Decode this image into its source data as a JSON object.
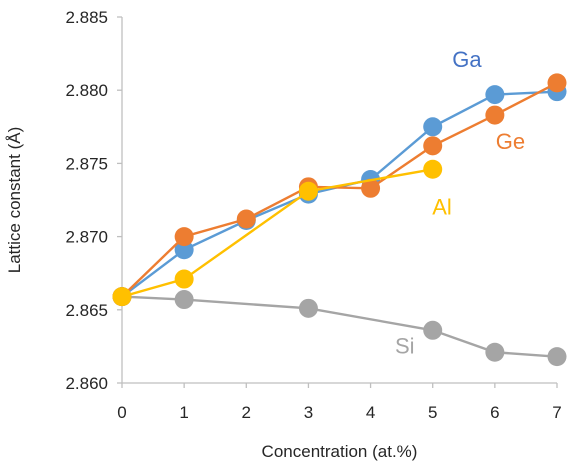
{
  "chart_data": {
    "type": "line",
    "title": "",
    "xlabel": "Concentration (at.%)",
    "ylabel": "Lattice constant (Å)",
    "xlim": [
      0,
      7
    ],
    "ylim": [
      2.86,
      2.885
    ],
    "x_ticks": [
      "0",
      "1",
      "2",
      "3",
      "4",
      "5",
      "6",
      "7"
    ],
    "y_ticks": [
      "2.860",
      "2.865",
      "2.870",
      "2.875",
      "2.880",
      "2.885"
    ],
    "grid": false,
    "series": [
      {
        "name": "Ga",
        "color": "#5B9BD5",
        "x": [
          0,
          1,
          2,
          3,
          4,
          5,
          6,
          7
        ],
        "values": [
          2.8659,
          2.8691,
          2.8711,
          2.8729,
          2.8739,
          2.8775,
          2.8797,
          2.8799
        ]
      },
      {
        "name": "Ge",
        "color": "#ED7D31",
        "x": [
          0,
          1,
          2,
          3,
          4,
          5,
          6,
          7
        ],
        "values": [
          2.8659,
          2.87,
          2.8712,
          2.8734,
          2.8733,
          2.8762,
          2.8783,
          2.8805
        ]
      },
      {
        "name": "Al",
        "color": "#FFC000",
        "x": [
          0,
          1,
          3,
          5
        ],
        "values": [
          2.8659,
          2.8671,
          2.8731,
          2.8746
        ]
      },
      {
        "name": "Si",
        "color": "#A5A5A5",
        "x": [
          0,
          1,
          3,
          5,
          6,
          7
        ],
        "values": [
          2.8659,
          2.8657,
          2.8651,
          2.8636,
          2.8621,
          2.8618
        ]
      }
    ],
    "annotations": [
      {
        "text": "Ga",
        "color": "#4472C4",
        "at_x": 5.55,
        "at_y": 2.8816
      },
      {
        "text": "Ge",
        "color": "#ED7D31",
        "at_x": 6.25,
        "at_y": 2.876
      },
      {
        "text": "Al",
        "color": "#FFC000",
        "at_x": 5.15,
        "at_y": 2.8715
      },
      {
        "text": "Si",
        "color": "#A5A5A5",
        "at_x": 4.55,
        "at_y": 2.862
      }
    ]
  }
}
